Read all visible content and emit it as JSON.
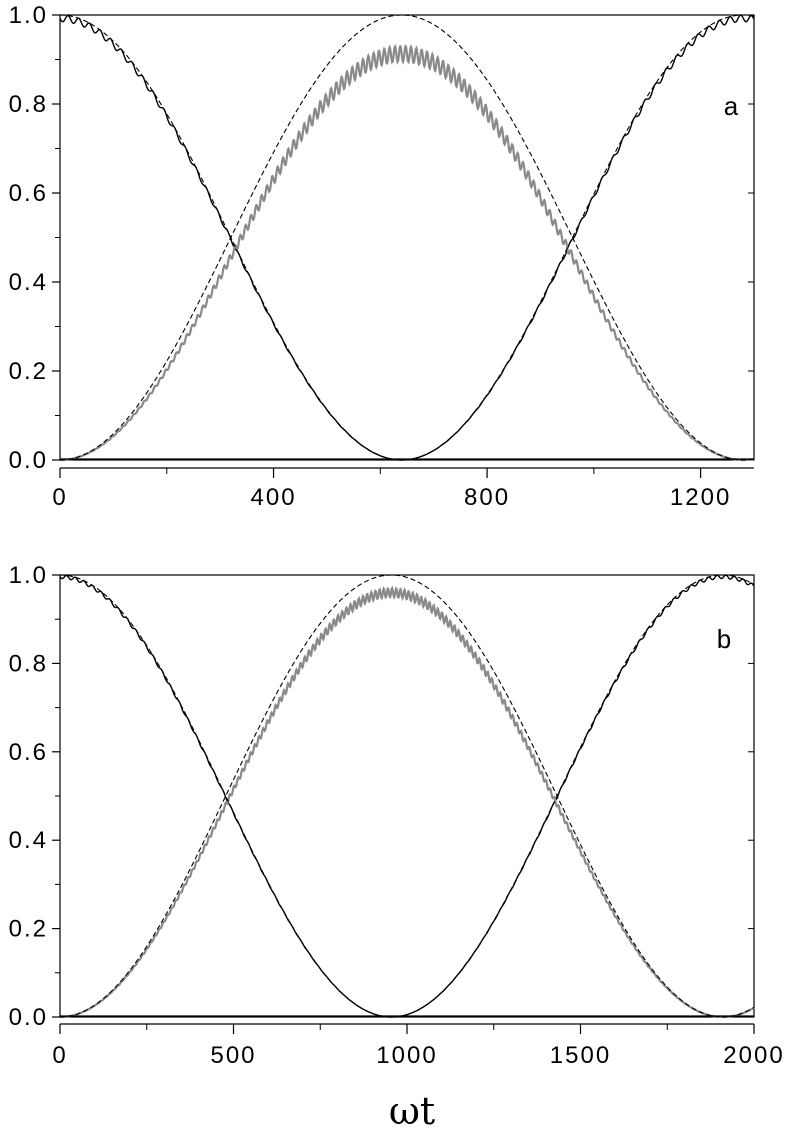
{
  "xlabel": "ωt",
  "chart_data": [
    {
      "type": "line",
      "panel_label": "a",
      "xlim": [
        0,
        1300
      ],
      "ylim": [
        0,
        1.0
      ],
      "x_ticks": [
        0,
        400,
        800,
        1200
      ],
      "x_tick_labels": [
        "0",
        "400",
        "800",
        "1200"
      ],
      "x_minor_ticks": [
        200,
        600,
        1000
      ],
      "y_ticks": [
        0.0,
        0.2,
        0.4,
        0.6,
        0.8,
        1.0
      ],
      "y_tick_labels": [
        "0.0",
        "0.2",
        "0.4",
        "0.6",
        "0.8",
        "1.0"
      ],
      "grid": false,
      "period": 1280,
      "series": [
        {
          "style": "solid-black",
          "form": "cos2",
          "amplitude": 1.0,
          "phase_offset": 0,
          "oscillation_amplitude": 0.015,
          "oscillation_period": 20
        },
        {
          "style": "solid-gray",
          "form": "sin2",
          "amplitude": 0.93,
          "phase_offset": 0,
          "oscillation_amplitude": 0.035,
          "oscillation_period": 10
        },
        {
          "style": "dashed-black",
          "form": "sin2",
          "amplitude": 1.0,
          "phase_offset": 0
        },
        {
          "style": "dashed-black",
          "form": "cos2",
          "amplitude": 1.0,
          "phase_offset": 0
        },
        {
          "style": "solid-black",
          "form": "constant",
          "value": 0.002
        }
      ]
    },
    {
      "type": "line",
      "panel_label": "b",
      "xlim": [
        0,
        2000
      ],
      "ylim": [
        0,
        1.0
      ],
      "x_ticks": [
        0,
        500,
        1000,
        1500,
        2000
      ],
      "x_tick_labels": [
        "0",
        "500",
        "1000",
        "1500",
        "2000"
      ],
      "x_minor_ticks": [
        250,
        750,
        1250,
        1750
      ],
      "y_ticks": [
        0.0,
        0.2,
        0.4,
        0.6,
        0.8,
        1.0
      ],
      "y_tick_labels": [
        "0.0",
        "0.2",
        "0.4",
        "0.6",
        "0.8",
        "1.0"
      ],
      "grid": false,
      "period": 1910,
      "series": [
        {
          "style": "solid-black",
          "form": "cos2",
          "amplitude": 1.0,
          "phase_offset": 0,
          "oscillation_amplitude": 0.008,
          "oscillation_period": 25
        },
        {
          "style": "solid-gray",
          "form": "sin2",
          "amplitude": 0.97,
          "phase_offset": 0,
          "oscillation_amplitude": 0.02,
          "oscillation_period": 12
        },
        {
          "style": "dashed-black",
          "form": "sin2",
          "amplitude": 1.0,
          "phase_offset": 0
        },
        {
          "style": "dashed-black",
          "form": "cos2",
          "amplitude": 1.0,
          "phase_offset": 0
        },
        {
          "style": "solid-black",
          "form": "constant",
          "value": 0.002
        }
      ]
    }
  ]
}
